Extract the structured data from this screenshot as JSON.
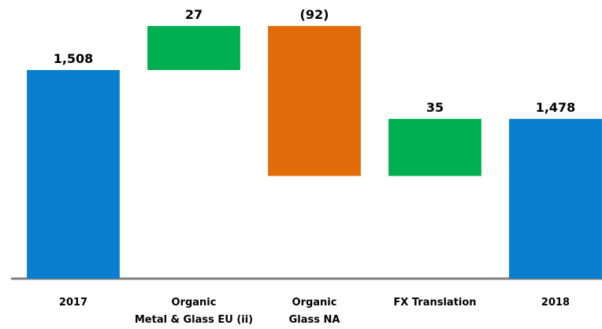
{
  "chart_data": {
    "type": "waterfall",
    "categories": [
      "2017",
      "Organic\nMetal & Glass EU (ii)",
      "Organic\nGlass NA",
      "FX Translation",
      "2018"
    ],
    "values": [
      1508,
      27,
      -92,
      35,
      1478
    ],
    "value_labels": [
      "1,508",
      "27",
      "(92)",
      "35",
      "1,478"
    ],
    "measure": [
      "absolute",
      "relative",
      "relative",
      "relative",
      "total"
    ],
    "colors": [
      "#0a7fd0",
      "#00b050",
      "#e36c0a",
      "#00b050",
      "#0a7fd0"
    ],
    "ylim": [
      1380,
      1550
    ]
  }
}
